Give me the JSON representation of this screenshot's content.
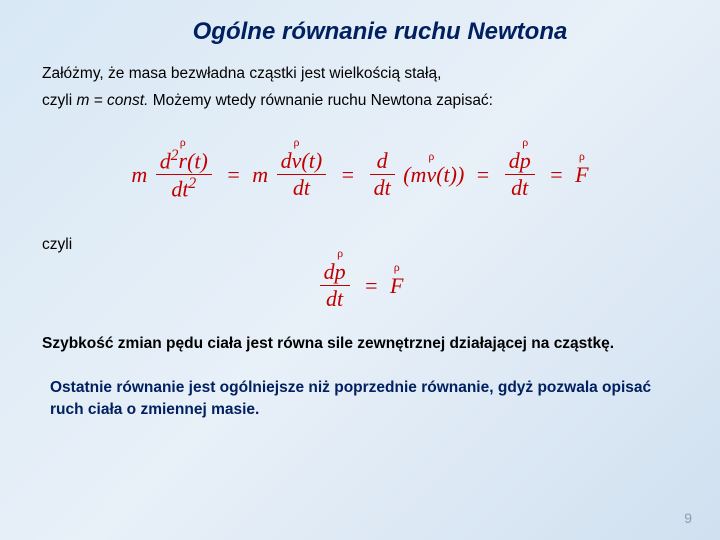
{
  "title": "Ogólne równanie ruchu Newtona",
  "intro_line1": "Załóżmy, że masa bezwładna cząstki jest wielkością stałą,",
  "intro_line2a": "czyli ",
  "intro_line2_em": "m = const.",
  "intro_line2b": " Możemy wtedy równanie ruchu Newtona  zapisać:",
  "czyli_label": "czyli",
  "statement": "Szybkość zmian pędu ciała jest równa sile zewnętrznej działającej na cząstkę.",
  "final": "Ostatnie równanie jest ogólniejsze niż poprzednie równanie, gdyż pozwala opisać ruch ciała o zmiennej masie.",
  "page_number": "9",
  "eq": {
    "m": "m",
    "d2r_num_a": "d",
    "d2r_num_b": "r",
    "d2r_num_c": "(t)",
    "d2r_den": "dt",
    "dv_num_a": "d",
    "dv_num_b": "v",
    "dv_num_c": "(t)",
    "dv_den": "dt",
    "ddt_num": "d",
    "ddt_den": "dt",
    "mv_a": "(m",
    "mv_b": "v",
    "mv_c": "(t))",
    "dp_num_a": "d",
    "dp_num_b": "p",
    "dp_den": "dt",
    "F": "F",
    "sup2": "2",
    "eq_sign": "=",
    "arrow": "ρ"
  },
  "colors": {
    "title": "#002060",
    "equation": "#c00000",
    "final": "#002060",
    "pagenum": "#8a9bb5"
  }
}
